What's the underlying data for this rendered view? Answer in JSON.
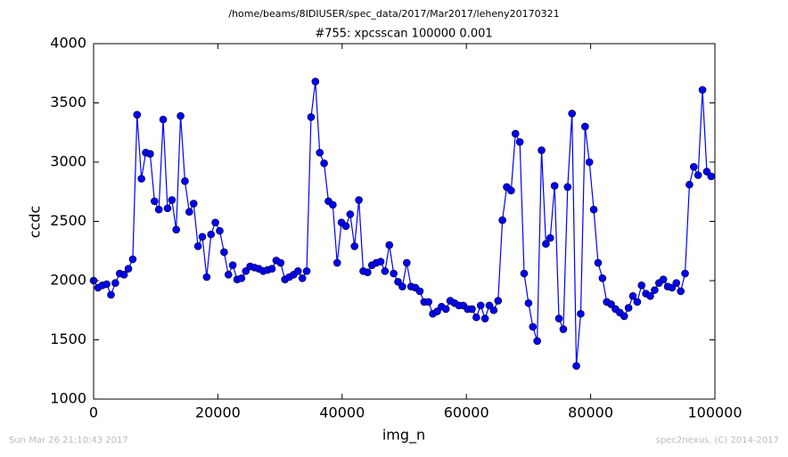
{
  "chart_data": {
    "type": "line",
    "suptitle": "/home/beams/8IDIUSER/spec_data/2017/Mar2017/leheny20170321",
    "title": "#755: xpcsscan 100000 0.001",
    "xlabel": "img_n",
    "ylabel": "ccdc",
    "footer_left": "Sun Mar 26 21:10:43 2017",
    "footer_right": "spec2nexus, (C) 2014-2017",
    "x": [
      0,
      700,
      1400,
      2100,
      2800,
      3500,
      4200,
      4900,
      5600,
      6300,
      7000,
      7700,
      8400,
      9100,
      9800,
      10500,
      11200,
      11900,
      12600,
      13300,
      14000,
      14700,
      15400,
      16100,
      16800,
      17500,
      18200,
      18900,
      19600,
      20300,
      21000,
      21700,
      22400,
      23100,
      23800,
      24500,
      25200,
      25900,
      26600,
      27300,
      28000,
      28700,
      29400,
      30100,
      30800,
      31500,
      32200,
      32900,
      33600,
      34300,
      35000,
      35700,
      36400,
      37100,
      37800,
      38500,
      39200,
      39900,
      40600,
      41300,
      42000,
      42700,
      43400,
      44100,
      44800,
      45500,
      46200,
      46900,
      47600,
      48300,
      49000,
      49700,
      50400,
      51100,
      51800,
      52500,
      53200,
      53900,
      54600,
      55300,
      56000,
      56700,
      57400,
      58100,
      58800,
      59500,
      60200,
      60900,
      61600,
      62300,
      63000,
      63700,
      64400,
      65100,
      65800,
      66500,
      67200,
      67900,
      68600,
      69300,
      70000,
      70700,
      71400,
      72100,
      72800,
      73500,
      74200,
      74900,
      75600,
      76300,
      77000,
      77700,
      78400,
      79100,
      79800,
      80500,
      81200,
      81900,
      82600,
      83300,
      84000,
      84700,
      85400,
      86100,
      86800,
      87500,
      88200,
      88900,
      89600,
      90300,
      91000,
      91700,
      92400,
      93100,
      93800,
      94500,
      95200,
      95900,
      96600,
      97300,
      98000,
      98700,
      99400
    ],
    "series": [
      {
        "name": "ccdc",
        "color": "#0000ff",
        "values": [
          2000,
          1940,
          1960,
          1970,
          1880,
          1980,
          2060,
          2050,
          2100,
          2180,
          3400,
          2860,
          3080,
          3070,
          2670,
          2600,
          3360,
          2610,
          2680,
          2430,
          3390,
          2840,
          2580,
          2650,
          2290,
          2370,
          2030,
          2390,
          2490,
          2420,
          2240,
          2050,
          2130,
          2010,
          2020,
          2080,
          2120,
          2110,
          2100,
          2080,
          2090,
          2100,
          2170,
          2150,
          2010,
          2030,
          2050,
          2080,
          2020,
          2080,
          3380,
          3680,
          3080,
          2990,
          2670,
          2640,
          2150,
          2490,
          2460,
          2560,
          2290,
          2680,
          2080,
          2070,
          2130,
          2150,
          2160,
          2080,
          2300,
          2060,
          1990,
          1950,
          2150,
          1950,
          1940,
          1910,
          1820,
          1820,
          1720,
          1740,
          1780,
          1760,
          1830,
          1810,
          1790,
          1790,
          1760,
          1760,
          1690,
          1790,
          1680,
          1790,
          1750,
          1830,
          2510,
          2790,
          2760,
          3240,
          3170,
          2060,
          1810,
          1610,
          1490,
          3100,
          2310,
          2360,
          2800,
          1680,
          1590,
          2790,
          3410,
          1280,
          1720,
          3300,
          3000,
          2600,
          2150,
          2020,
          1820,
          1800,
          1760,
          1730,
          1700,
          1770,
          1870,
          1820,
          1960,
          1890,
          1870,
          1920,
          1980,
          2010,
          1950,
          1940,
          1980,
          1910,
          2060,
          2810,
          2960,
          2890,
          3610,
          2920,
          2880
        ]
      }
    ],
    "xlim": [
      0,
      100000
    ],
    "xticks": [
      0,
      20000,
      40000,
      60000,
      80000,
      100000
    ],
    "ylim": [
      1000,
      4000
    ],
    "yticks": [
      1000,
      1500,
      2000,
      2500,
      3000,
      3500,
      4000
    ],
    "grid": false
  }
}
